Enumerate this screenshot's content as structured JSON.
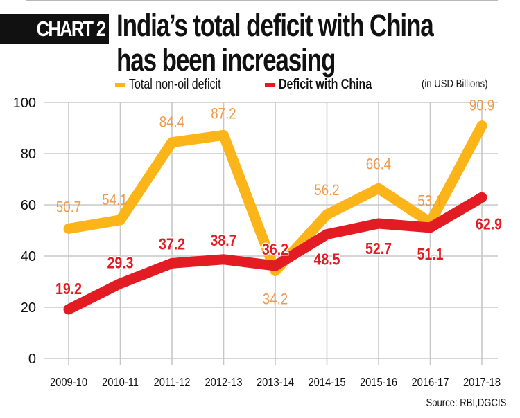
{
  "header": {
    "badge": "CHART 2",
    "title_line1": "India’s total deficit with China",
    "title_line2": "has been increasing"
  },
  "legend": {
    "unit": "(in USD Billions)"
  },
  "source": "Source: RBI,DGCIS",
  "chart_data": {
    "type": "line",
    "title": "India’s total deficit with China has been increasing",
    "xlabel": "",
    "ylabel": "",
    "unit": "(in USD Billions)",
    "categories": [
      "2009-10",
      "2010-11",
      "2011-12",
      "2012-13",
      "2013-14",
      "2014-15",
      "2015-16",
      "2016-17",
      "2017-18"
    ],
    "yticks": [
      "0",
      "20",
      "40",
      "60",
      "80",
      "100"
    ],
    "ylim": [
      0,
      100
    ],
    "grid": true,
    "legend_position": "top",
    "series": [
      {
        "name": "Total non-oil deficit",
        "color": "#fbb518",
        "label_color": "#f2994a",
        "values": [
          50.7,
          54.1,
          84.4,
          87.2,
          34.2,
          56.2,
          66.4,
          53.1,
          90.9
        ],
        "labels": [
          "50.7",
          "54.1",
          "84.4",
          "87.2",
          "34.2",
          "56.2",
          "66.4",
          "53.1",
          "90.9"
        ]
      },
      {
        "name": "Deficit with China",
        "color": "#e31b23",
        "label_color": "#e31b23",
        "values": [
          19.2,
          29.3,
          37.2,
          38.7,
          36.2,
          48.5,
          52.7,
          51.1,
          62.9
        ],
        "labels": [
          "19.2",
          "29.3",
          "37.2",
          "38.7",
          "36.2",
          "48.5",
          "52.7",
          "51.1",
          "62.9"
        ]
      }
    ],
    "source": "Source: RBI,DGCIS"
  }
}
